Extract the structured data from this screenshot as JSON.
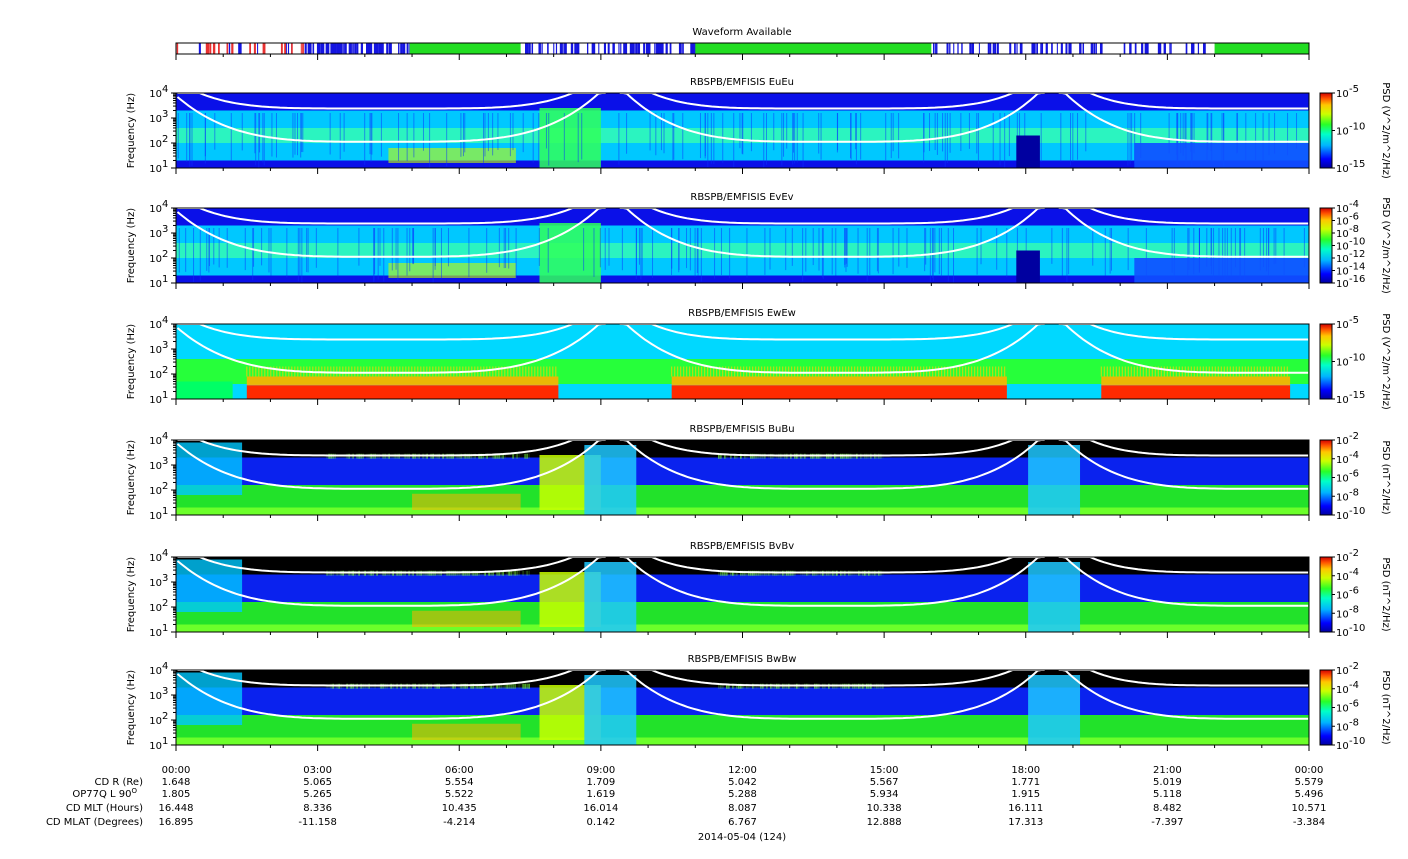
{
  "waveform": {
    "title": "Waveform Available",
    "availability": [
      {
        "from": 0.0,
        "to": 2.8,
        "state": "sparse"
      },
      {
        "from": 2.8,
        "to": 4.95,
        "state": "dense"
      },
      {
        "from": 4.95,
        "to": 7.3,
        "state": "available"
      },
      {
        "from": 7.3,
        "to": 11.0,
        "state": "dense"
      },
      {
        "from": 11.0,
        "to": 16.0,
        "state": "available"
      },
      {
        "from": 16.0,
        "to": 22.0,
        "state": "dense"
      },
      {
        "from": 22.0,
        "to": 24.0,
        "state": "available"
      }
    ],
    "colors": {
      "available": "#22dd22",
      "dense": "#1515e0",
      "sparse": "#e83030"
    }
  },
  "chart_data": [
    {
      "type": "heatmap",
      "title": "RBSPB/EMFISIS  EuEu",
      "ylabel": "Frequency (Hz)",
      "yscale": "log",
      "ylim": [
        10,
        10000
      ],
      "y_ticks": [
        "10",
        "10",
        "10",
        "10"
      ],
      "y_tick_exponents": [
        "1",
        "2",
        "3",
        "4"
      ],
      "colorbar": {
        "label": "PSD (V^2/m^2/Hz)",
        "scale": "log",
        "range": [
          1e-15,
          1e-05
        ],
        "ticks": [
          "10",
          "10",
          "10"
        ],
        "tick_exponents": [
          "-15",
          "-10",
          "-5"
        ]
      }
    },
    {
      "type": "heatmap",
      "title": "RBSPB/EMFISIS  EvEv",
      "ylabel": "Frequency (Hz)",
      "yscale": "log",
      "ylim": [
        10,
        10000
      ],
      "y_ticks": [
        "10",
        "10",
        "10",
        "10"
      ],
      "y_tick_exponents": [
        "1",
        "2",
        "3",
        "4"
      ],
      "colorbar": {
        "label": "PSD (V^2/m^2/Hz)",
        "scale": "log",
        "range": [
          1e-16,
          0.0001
        ],
        "ticks": [
          "10",
          "10",
          "10",
          "10",
          "10",
          "10",
          "10"
        ],
        "tick_exponents": [
          "-16",
          "-14",
          "-12",
          "-10",
          "-8",
          "-6",
          "-4"
        ]
      }
    },
    {
      "type": "heatmap",
      "title": "RBSPB/EMFISIS  EwEw",
      "ylabel": "Frequency (Hz)",
      "yscale": "log",
      "ylim": [
        10,
        10000
      ],
      "y_ticks": [
        "10",
        "10",
        "10",
        "10"
      ],
      "y_tick_exponents": [
        "1",
        "2",
        "3",
        "4"
      ],
      "colorbar": {
        "label": "PSD (V^2/m^2/Hz)",
        "scale": "log",
        "range": [
          1e-15,
          1e-05
        ],
        "ticks": [
          "10",
          "10",
          "10"
        ],
        "tick_exponents": [
          "-15",
          "-10",
          "-5"
        ]
      }
    },
    {
      "type": "heatmap",
      "title": "RBSPB/EMFISIS  BuBu",
      "ylabel": "Frequency (Hz)",
      "yscale": "log",
      "ylim": [
        10,
        10000
      ],
      "y_ticks": [
        "10",
        "10",
        "10",
        "10"
      ],
      "y_tick_exponents": [
        "1",
        "2",
        "3",
        "4"
      ],
      "colorbar": {
        "label": "PSD (nT^2/Hz)",
        "scale": "log",
        "range": [
          1e-10,
          0.01
        ],
        "ticks": [
          "10",
          "10",
          "10",
          "10",
          "10"
        ],
        "tick_exponents": [
          "-10",
          "-8",
          "-6",
          "-4",
          "-2"
        ]
      }
    },
    {
      "type": "heatmap",
      "title": "RBSPB/EMFISIS  BvBv",
      "ylabel": "Frequency (Hz)",
      "yscale": "log",
      "ylim": [
        10,
        10000
      ],
      "y_ticks": [
        "10",
        "10",
        "10",
        "10"
      ],
      "y_tick_exponents": [
        "1",
        "2",
        "3",
        "4"
      ],
      "colorbar": {
        "label": "PSD (nT^2/Hz)",
        "scale": "log",
        "range": [
          1e-10,
          0.01
        ],
        "ticks": [
          "10",
          "10",
          "10",
          "10",
          "10"
        ],
        "tick_exponents": [
          "-10",
          "-8",
          "-6",
          "-4",
          "-2"
        ]
      }
    },
    {
      "type": "heatmap",
      "title": "RBSPB/EMFISIS  BwBw",
      "ylabel": "Frequency (Hz)",
      "yscale": "log",
      "ylim": [
        10,
        10000
      ],
      "y_ticks": [
        "10",
        "10",
        "10",
        "10"
      ],
      "y_tick_exponents": [
        "1",
        "2",
        "3",
        "4"
      ],
      "colorbar": {
        "label": "PSD (nT^2/Hz)",
        "scale": "log",
        "range": [
          1e-10,
          0.01
        ],
        "ticks": [
          "10",
          "10",
          "10",
          "10",
          "10"
        ],
        "tick_exponents": [
          "-10",
          "-8",
          "-6",
          "-4",
          "-2"
        ]
      }
    }
  ],
  "time_axis": {
    "labels": [
      "00:00",
      "03:00",
      "06:00",
      "09:00",
      "12:00",
      "15:00",
      "18:00",
      "21:00",
      "00:00"
    ],
    "range_hours": [
      0,
      24
    ],
    "date_label": "2014-05-04 (124)"
  },
  "ephemeris": {
    "labels": [
      "CD R (Re)",
      "OP77Q L 90",
      "CD MLT (Hours)",
      "CD MLAT (Degrees)"
    ],
    "l_label_superscript": "O",
    "rows": [
      [
        "1.648",
        "5.065",
        "5.554",
        "1.709",
        "5.042",
        "5.567",
        "1.771",
        "5.019",
        "5.579"
      ],
      [
        "1.805",
        "5.265",
        "5.522",
        "1.619",
        "5.288",
        "5.934",
        "1.915",
        "5.118",
        "5.496"
      ],
      [
        "16.448",
        "8.336",
        "10.435",
        "16.014",
        "8.087",
        "10.338",
        "16.111",
        "8.482",
        "10.571"
      ],
      [
        "16.895",
        "-11.158",
        "-4.214",
        "0.142",
        "6.767",
        "12.888",
        "17.313",
        "-7.397",
        "-3.384"
      ]
    ]
  }
}
